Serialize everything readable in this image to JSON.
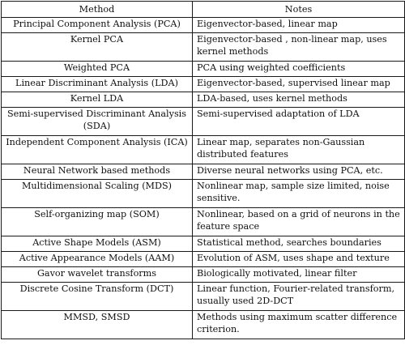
{
  "table": {
    "headers": [
      "Method",
      "Notes"
    ],
    "rows": [
      {
        "method": "Principal Component Analysis (PCA)",
        "notes": "Eigenvector-based, linear map"
      },
      {
        "method": "Kernel PCA",
        "notes": "Eigenvector-based , non-linear map, uses kernel methods"
      },
      {
        "method": "Weighted PCA",
        "notes": "PCA using weighted coefficients"
      },
      {
        "method": "Linear Discriminant Analysis (LDA)",
        "notes": "Eigenvector-based, supervised linear map"
      },
      {
        "method": "Kernel LDA",
        "notes": "LDA-based, uses kernel methods"
      },
      {
        "method": "Semi-supervised Discriminant Analysis (SDA)",
        "notes": "Semi-supervised adaptation of LDA"
      },
      {
        "method": "Independent Component Analysis (ICA)",
        "notes": "Linear map, separates non-Gaussian distributed features"
      },
      {
        "method": "Neural Network based methods",
        "notes": "Diverse neural networks using PCA, etc."
      },
      {
        "method": "Multidimensional Scaling (MDS)",
        "notes": "Nonlinear map, sample size limited, noise sensitive."
      },
      {
        "method": "Self-organizing map (SOM)",
        "notes": "Nonlinear, based on a grid of neurons in the feature space"
      },
      {
        "method": "Active Shape Models (ASM)",
        "notes": "Statistical method, searches boundaries"
      },
      {
        "method": "Active Appearance Models (AAM)",
        "notes": "Evolution of ASM, uses shape and texture"
      },
      {
        "method": "Gavor wavelet transforms",
        "notes": "Biologically motivated, linear filter"
      },
      {
        "method": "Discrete Cosine Transform (DCT)",
        "notes": "Linear function, Fourier-related transform, usually used 2D-DCT"
      },
      {
        "method": "MMSD, SMSD",
        "notes": "Methods using maximum scatter difference criterion."
      }
    ]
  }
}
